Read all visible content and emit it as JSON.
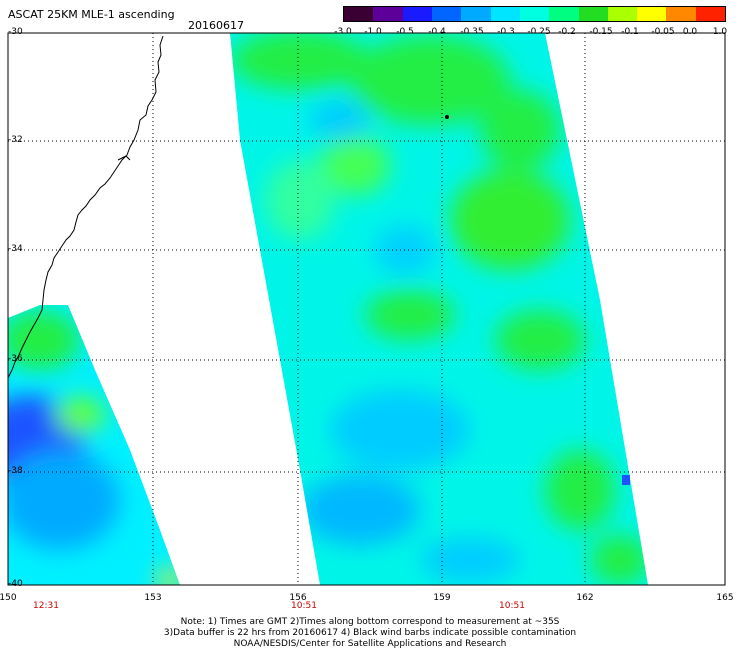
{
  "header": {
    "title": "ASCAT 25KM MLE-1 ascending",
    "date": "20160617"
  },
  "colorbar": {
    "labels": [
      "-3.0",
      "-1.0",
      "-0.5",
      "-0.4",
      "-0.35",
      "-0.3",
      "-0.25",
      "-0.2",
      "-0.15",
      "-0.1",
      "-0.05",
      "0.0",
      "1.0"
    ],
    "colors": [
      "#3a0033",
      "#5c0099",
      "#1a1aff",
      "#0066ff",
      "#00aaff",
      "#00e5ff",
      "#00ffe0",
      "#00ff80",
      "#22dd22",
      "#aaff00",
      "#ffff00",
      "#ff8800",
      "#ff2200"
    ]
  },
  "map": {
    "lat_labels": [
      "-30",
      "-32",
      "-34",
      "-36",
      "-38",
      "-40"
    ],
    "lon_labels": [
      "150",
      "153",
      "156",
      "159",
      "162",
      "165"
    ],
    "times": [
      "12:31",
      "10:51",
      "10:51"
    ],
    "colors": {
      "swath_base": "#00f5e8",
      "low": "#00d0ff",
      "lower": "#1a55ff",
      "high": "#22ee44",
      "higher": "#aaff22",
      "highest": "#ffee00",
      "coast": "#000000",
      "grid": "#000000"
    }
  },
  "notes": {
    "line1": "Note: 1) Times are GMT 2)Times along bottom correspond to measurement at ~35S",
    "line2": "3)Data buffer is 22 hrs from 20160617 4) Black wind barbs indicate possible contamination",
    "line3": "NOAA/NESDIS/Center for Satellite Applications and Research"
  }
}
